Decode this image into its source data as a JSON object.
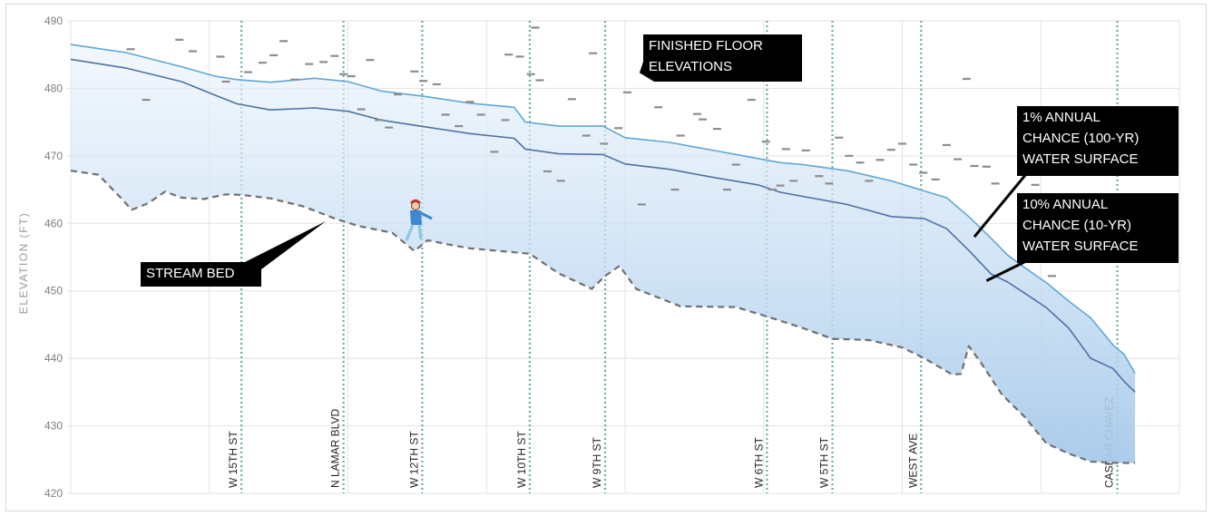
{
  "chart_data": {
    "type": "area",
    "ylabel": "ELEVATION (FT)",
    "ylim": [
      420,
      490
    ],
    "yticks": [
      420,
      430,
      440,
      450,
      460,
      470,
      480,
      490
    ],
    "grid": true,
    "x_unit": "relative stream station (0-100)",
    "xlim": [
      0,
      100
    ],
    "streets": [
      {
        "label": "W 15TH ST",
        "x": 15.4
      },
      {
        "label": "N LAMAR BLVD",
        "x": 24.6
      },
      {
        "label": "W 12TH ST",
        "x": 31.7
      },
      {
        "label": "W 10TH ST",
        "x": 41.4
      },
      {
        "label": "W 9TH ST",
        "x": 48.2
      },
      {
        "label": "W 6TH ST",
        "x": 62.8
      },
      {
        "label": "W 5TH ST",
        "x": 68.7
      },
      {
        "label": "WEST AVE",
        "x": 76.7
      },
      {
        "label": "CASEAR CHAVEZ",
        "x": 94.4
      }
    ],
    "series": [
      {
        "name": "1% ANNUAL CHANCE (100-YR) WATER SURFACE",
        "color": "#5ea7d6",
        "x": [
          0,
          5,
          10,
          13,
          15,
          18,
          22,
          25,
          28,
          32,
          36,
          40,
          41,
          44,
          48,
          50,
          54,
          58,
          62,
          64,
          66,
          70,
          74,
          77,
          79,
          81,
          83,
          84.5,
          86,
          88,
          90,
          92,
          94,
          95,
          96
        ],
        "y": [
          486.5,
          485.3,
          483.2,
          481.8,
          481.3,
          480.9,
          481.5,
          481.0,
          479.6,
          478.8,
          477.8,
          477.2,
          475.0,
          474.4,
          474.4,
          472.7,
          472.0,
          470.8,
          469.6,
          469.0,
          468.7,
          467.8,
          466.3,
          464.8,
          463.8,
          461.0,
          457.8,
          455.3,
          453.5,
          451.2,
          448.5,
          446.0,
          442.0,
          440.6,
          437.8
        ]
      },
      {
        "name": "10% ANNUAL CHANCE (10-YR) WATER SURFACE",
        "color": "#4f72a4",
        "x": [
          0,
          5,
          10,
          13,
          15,
          18,
          22,
          25,
          28,
          32,
          36,
          40,
          41,
          44,
          48,
          50,
          54,
          58,
          62,
          64,
          66,
          70,
          74,
          77,
          79,
          81,
          83,
          84.5,
          86,
          88,
          90,
          92,
          94,
          95,
          96
        ],
        "y": [
          484.3,
          483.0,
          481.0,
          479.0,
          477.7,
          476.8,
          477.1,
          476.6,
          475.3,
          474.3,
          473.3,
          472.6,
          471.0,
          470.3,
          470.2,
          468.8,
          468.0,
          466.8,
          465.7,
          464.6,
          464.0,
          462.8,
          461.0,
          460.7,
          459.2,
          456.0,
          452.5,
          451.3,
          449.7,
          447.5,
          444.5,
          440.0,
          438.5,
          436.6,
          435.0
        ]
      },
      {
        "name": "STREAM BED",
        "color": "#707070",
        "dashed": true,
        "x": [
          0,
          2.5,
          4.5,
          5.5,
          7,
          8.5,
          10,
          12,
          14,
          15.5,
          18,
          21,
          24,
          26,
          29,
          31,
          32.2,
          34,
          36,
          41.4,
          44,
          47,
          48.2,
          49.5,
          51,
          55,
          60,
          62.8,
          66,
          68.7,
          72,
          75,
          77,
          79.5,
          80.3,
          81,
          82,
          84,
          86,
          88,
          90,
          92,
          94.4,
          96
        ],
        "y": [
          467.8,
          467.2,
          463.8,
          462.0,
          463.0,
          464.7,
          463.8,
          463.6,
          464.3,
          464.2,
          463.7,
          462.5,
          460.6,
          459.6,
          458.6,
          455.9,
          457.5,
          456.9,
          456.3,
          455.5,
          452.6,
          450.3,
          452.2,
          453.7,
          450.3,
          447.7,
          447.6,
          446.2,
          444.5,
          442.9,
          442.7,
          441.6,
          440.0,
          437.6,
          437.7,
          441.8,
          439.6,
          434.6,
          431.4,
          427.4,
          425.9,
          424.7,
          424.5,
          424.5
        ]
      }
    ],
    "finished_floor_elevations": [
      [
        5.4,
        485.8
      ],
      [
        6.8,
        478.3
      ],
      [
        9.8,
        487.2
      ],
      [
        11.0,
        485.5
      ],
      [
        13.5,
        484.7
      ],
      [
        14.0,
        481.0
      ],
      [
        16.0,
        482.4
      ],
      [
        17.3,
        483.8
      ],
      [
        18.3,
        484.9
      ],
      [
        19.2,
        487.0
      ],
      [
        20.2,
        481.3
      ],
      [
        21.5,
        483.6
      ],
      [
        22.8,
        483.9
      ],
      [
        23.8,
        484.8
      ],
      [
        24.6,
        482.1
      ],
      [
        25.3,
        481.8
      ],
      [
        26.2,
        476.9
      ],
      [
        27.0,
        484.2
      ],
      [
        27.8,
        475.3
      ],
      [
        28.7,
        474.2
      ],
      [
        29.5,
        479.1
      ],
      [
        31.0,
        482.5
      ],
      [
        31.8,
        481.1
      ],
      [
        33.0,
        480.6
      ],
      [
        33.8,
        476.1
      ],
      [
        35.0,
        474.4
      ],
      [
        36.0,
        478.0
      ],
      [
        37.0,
        476.1
      ],
      [
        38.2,
        470.6
      ],
      [
        39.2,
        475.3
      ],
      [
        39.5,
        485.0
      ],
      [
        40.5,
        484.7
      ],
      [
        41.5,
        482.1
      ],
      [
        41.9,
        489.0
      ],
      [
        42.3,
        481.2
      ],
      [
        43.0,
        467.7
      ],
      [
        44.2,
        466.3
      ],
      [
        45.2,
        478.4
      ],
      [
        46.5,
        473.0
      ],
      [
        47.1,
        485.2
      ],
      [
        48.1,
        471.8
      ],
      [
        49.4,
        474.1
      ],
      [
        50.2,
        479.4
      ],
      [
        51.5,
        462.8
      ],
      [
        53.0,
        477.2
      ],
      [
        54.5,
        465.0
      ],
      [
        55.0,
        473.0
      ],
      [
        56.5,
        476.2
      ],
      [
        57.0,
        475.4
      ],
      [
        58.3,
        474.0
      ],
      [
        59.2,
        465.0
      ],
      [
        60.0,
        468.7
      ],
      [
        61.4,
        478.3
      ],
      [
        62.7,
        472.1
      ],
      [
        63.3,
        465.0
      ],
      [
        64.0,
        465.6
      ],
      [
        64.5,
        471.0
      ],
      [
        65.2,
        466.3
      ],
      [
        66.3,
        470.8
      ],
      [
        67.5,
        467.0
      ],
      [
        68.4,
        465.9
      ],
      [
        69.3,
        472.7
      ],
      [
        70.2,
        470.0
      ],
      [
        71.2,
        469.0
      ],
      [
        72.0,
        466.3
      ],
      [
        73.0,
        469.4
      ],
      [
        74.0,
        470.9
      ],
      [
        75.0,
        471.8
      ],
      [
        76.0,
        468.7
      ],
      [
        76.9,
        467.5
      ],
      [
        78.0,
        466.5
      ],
      [
        79.0,
        471.6
      ],
      [
        80.0,
        469.5
      ],
      [
        80.8,
        481.4
      ],
      [
        81.5,
        468.5
      ],
      [
        82.6,
        468.4
      ],
      [
        83.4,
        465.9
      ],
      [
        87.0,
        465.7
      ],
      [
        88.5,
        452.2
      ]
    ],
    "annotations": [
      {
        "text": "FINISHED FLOOR ELEVATIONS",
        "lines": [
          "FINISHED FLOOR",
          "ELEVATIONS"
        ],
        "target": [
          51.3,
          482.3
        ]
      },
      {
        "text": "1% ANNUAL CHANCE (100-YR) WATER SURFACE",
        "lines": [
          "1% ANNUAL",
          "CHANCE (100-YR)",
          "WATER SURFACE"
        ],
        "target": [
          81.5,
          458.0
        ]
      },
      {
        "text": "10% ANNUAL CHANCE (10-YR) WATER SURFACE",
        "lines": [
          "10% ANNUAL",
          "CHANCE (10-YR)",
          "WATER SURFACE"
        ],
        "target": [
          82.6,
          451.5
        ]
      },
      {
        "text": "STREAM BED",
        "lines": [
          "STREAM BED"
        ],
        "target": [
          23.0,
          460.3
        ]
      }
    ]
  }
}
